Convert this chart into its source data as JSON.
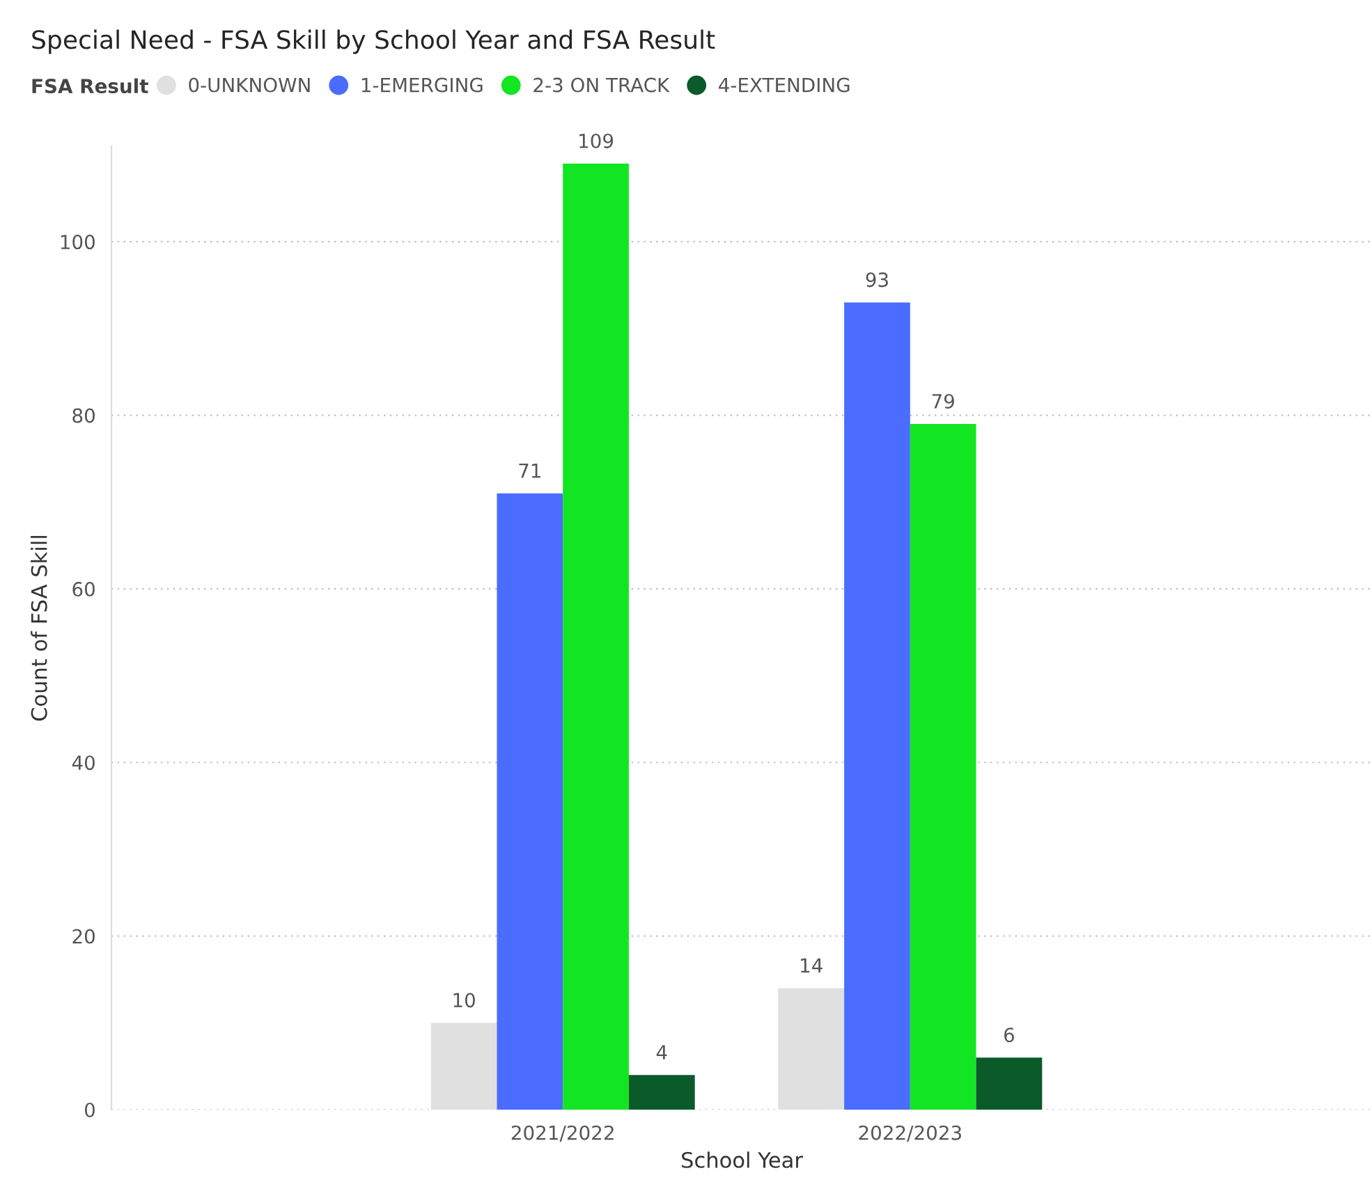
{
  "chart_data": {
    "type": "bar",
    "title": "Special Need - FSA Skill by School Year and FSA Result",
    "xlabel": "School Year",
    "ylabel": "Count of FSA Skill",
    "legend_title": "FSA Result",
    "legend": "top left",
    "grid": "y",
    "data_labels": true,
    "categories": [
      "2021/2022",
      "2022/2023"
    ],
    "series": [
      {
        "name": "0-UNKNOWN",
        "color": "#e0e0e0",
        "values": [
          10,
          14
        ]
      },
      {
        "name": "1-EMERGING",
        "color": "#4a6cff",
        "values": [
          71,
          93
        ]
      },
      {
        "name": "2-3 ON TRACK",
        "color": "#12e622",
        "values": [
          109,
          79
        ]
      },
      {
        "name": "4-EXTENDING",
        "color": "#0b5a2a",
        "values": [
          4,
          6
        ]
      }
    ],
    "ylim": [
      0,
      111
    ],
    "yticks": [
      0,
      20,
      40,
      60,
      80,
      100
    ]
  }
}
